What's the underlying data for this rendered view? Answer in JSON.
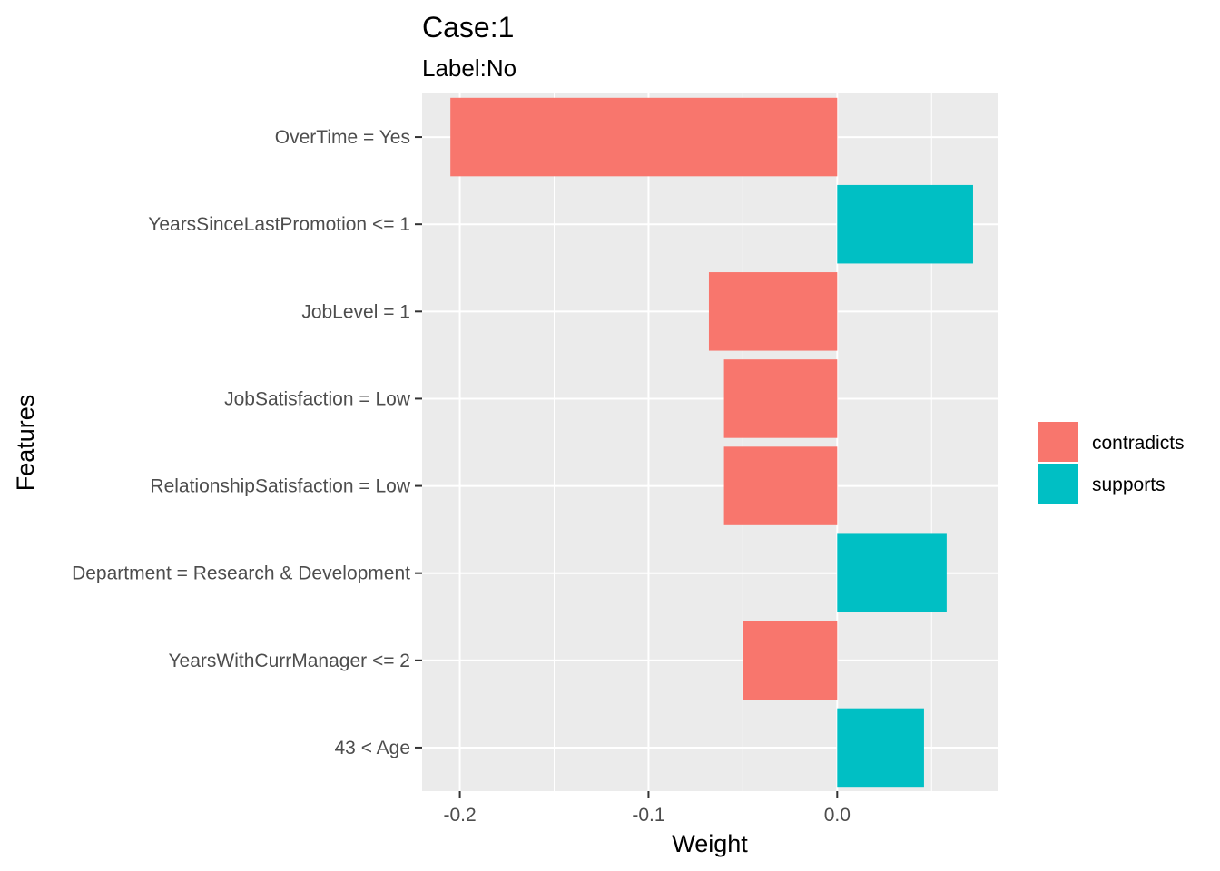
{
  "chart_data": {
    "type": "bar",
    "orientation": "horizontal",
    "title": "Case:1",
    "subtitle": "Label:No",
    "xlabel": "Weight",
    "ylabel": "Features",
    "xlim": [
      -0.22,
      0.085
    ],
    "x_ticks": [
      -0.2,
      -0.1,
      0.0
    ],
    "x_tick_labels": [
      "-0.2",
      "-0.1",
      "0.0"
    ],
    "grid": true,
    "legend_position": "right",
    "legend": [
      {
        "key": "contradicts",
        "label": "contradicts",
        "color": "#F8766D"
      },
      {
        "key": "supports",
        "label": "supports",
        "color": "#00BFC4"
      }
    ],
    "categories": [
      "OverTime = Yes",
      "YearsSinceLastPromotion <= 1",
      "JobLevel = 1",
      "JobSatisfaction = Low",
      "RelationshipSatisfaction = Low",
      "Department = Research & Development",
      "YearsWithCurrManager <= 2",
      "43 < Age"
    ],
    "values": [
      -0.205,
      0.072,
      -0.068,
      -0.06,
      -0.06,
      0.058,
      -0.05,
      0.046
    ],
    "groups": [
      "contradicts",
      "supports",
      "contradicts",
      "contradicts",
      "contradicts",
      "supports",
      "contradicts",
      "supports"
    ]
  }
}
